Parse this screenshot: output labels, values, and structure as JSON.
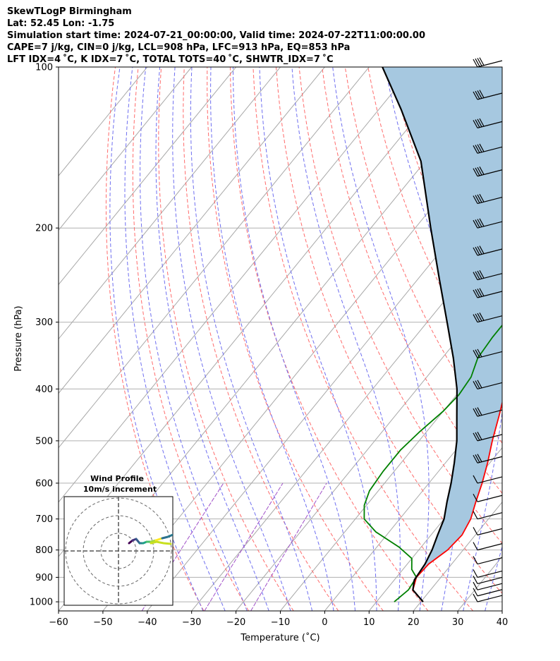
{
  "header": {
    "line1": "SkewTLogP Birmingham",
    "line2": "Lat: 52.45   Lon: -1.75",
    "line3": "Simulation start time: 2024-07-21_00:00:00, Valid time: 2024-07-22T11:00:00.00",
    "line4": "CAPE=7 j/kg, CIN=0 j/kg, LCL=908 hPa, LFC=913 hPa, EQ=853 hPa",
    "line5": "LFT IDX=4 ˚C, K IDX=7 ˚C, TOTAL TOTS=40 ˚C, SHWTR_IDX=7 ˚C"
  },
  "chart_data": {
    "type": "line",
    "subtype": "skew-T log-P diagram",
    "xlabel": "Temperature (˚C)",
    "ylabel": "Pressure (hPa)",
    "xlim": [
      -60,
      40
    ],
    "ylim": [
      1040,
      100
    ],
    "yscale": "log",
    "x_ticks": [
      "−60",
      "−50",
      "−40",
      "−30",
      "−20",
      "−10",
      "0",
      "10",
      "20",
      "30",
      "40"
    ],
    "y_ticks": [
      "100",
      "200",
      "300",
      "400",
      "500",
      "600",
      "700",
      "800",
      "900",
      "1000"
    ],
    "grid": true,
    "series": [
      {
        "name": "",
        "color": "#ff0000",
        "points": [
          [
            20.5,
            1000
          ],
          [
            16,
            950
          ],
          [
            14.5,
            900
          ],
          [
            14.8,
            850
          ],
          [
            16.5,
            800
          ],
          [
            17,
            750
          ],
          [
            16,
            700
          ],
          [
            14,
            650
          ],
          [
            12,
            600
          ],
          [
            9.5,
            550
          ],
          [
            6.5,
            500
          ],
          [
            3.5,
            450
          ],
          [
            0,
            400
          ],
          [
            -3,
            350
          ],
          [
            -7,
            300
          ],
          [
            -10,
            270
          ],
          [
            -11,
            250
          ],
          [
            -10.5,
            230
          ],
          [
            -9,
            215
          ],
          [
            -6,
            200
          ],
          [
            -2,
            185
          ],
          [
            2,
            170
          ],
          [
            6,
            160
          ],
          [
            8,
            152
          ],
          [
            10,
            145
          ],
          [
            11,
            137
          ],
          [
            11.5,
            128
          ],
          [
            12.5,
            120
          ],
          [
            13.5,
            112
          ],
          [
            15,
            105
          ],
          [
            16,
            100
          ]
        ]
      },
      {
        "name": "",
        "color": "#008000",
        "points": [
          [
            14,
            1000
          ],
          [
            15,
            950
          ],
          [
            14.5,
            900
          ],
          [
            12,
            870
          ],
          [
            10,
            830
          ],
          [
            5,
            790
          ],
          [
            -3,
            740
          ],
          [
            -8,
            700
          ],
          [
            -10.5,
            660
          ],
          [
            -12,
            620
          ],
          [
            -12.5,
            570
          ],
          [
            -12.5,
            520
          ],
          [
            -11.5,
            480
          ],
          [
            -10,
            440
          ],
          [
            -9.5,
            410
          ],
          [
            -10,
            380
          ],
          [
            -12,
            350
          ],
          [
            -12.5,
            320
          ],
          [
            -12.5,
            300
          ],
          [
            -12.5,
            280
          ],
          [
            -14,
            250
          ],
          [
            -15.5,
            230
          ],
          [
            -16,
            210
          ],
          [
            -16.5,
            190
          ],
          [
            -17,
            180
          ],
          [
            -19,
            170
          ],
          [
            -22,
            160
          ],
          [
            -19,
            145
          ],
          [
            -15,
            130
          ],
          [
            -11,
            115
          ],
          [
            -8,
            100
          ]
        ]
      },
      {
        "name": "",
        "color": "#000000",
        "points": [
          [
            20.5,
            1000
          ],
          [
            16,
            950
          ],
          [
            14.5,
            910
          ],
          [
            14,
            850
          ],
          [
            13,
            800
          ],
          [
            11.5,
            750
          ],
          [
            10,
            700
          ],
          [
            7.5,
            650
          ],
          [
            5,
            600
          ],
          [
            2,
            550
          ],
          [
            -1.5,
            500
          ],
          [
            -6,
            450
          ],
          [
            -11,
            400
          ],
          [
            -17.5,
            350
          ],
          [
            -25.5,
            300
          ],
          [
            -35,
            250
          ],
          [
            -46.5,
            200
          ],
          [
            -61,
            150
          ],
          [
            -75,
            120
          ],
          [
            -87,
            100
          ]
        ]
      }
    ],
    "shaded_region": {
      "color": "#a6c8e0",
      "between": [
        "temperature",
        "parcel"
      ]
    },
    "wind_barbs": {
      "levels": [
        1000,
        975,
        950,
        925,
        900,
        850,
        800,
        750,
        700,
        650,
        600,
        550,
        500,
        450,
        400,
        350,
        300,
        270,
        250,
        225,
        200,
        180,
        160,
        145,
        130,
        115,
        100
      ]
    },
    "inset": {
      "title_line1": "Wind Profile",
      "title_line2": "10m/s increment",
      "rings": [
        1,
        2,
        3
      ]
    }
  }
}
